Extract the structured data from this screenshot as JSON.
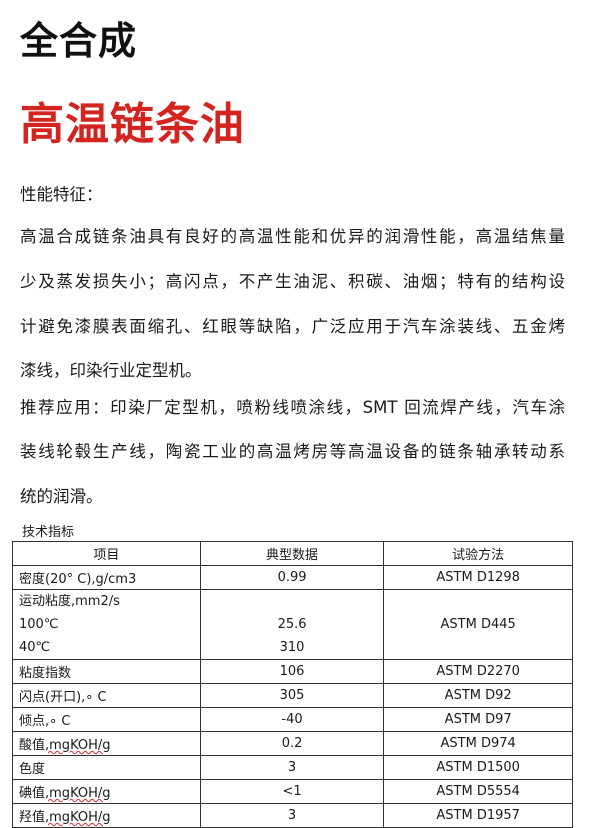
{
  "title": "全合成",
  "subtitle": "高温链条油",
  "features_heading": "性能特征：",
  "features_lines": [
    "高温合成链条油具有良好的高温性能和优异的润滑性能，高温结焦量",
    "少及蒸发损失小；高闪点，不产生油泥、积碳、油烟；特有的结构设",
    "计避免漆膜表面缩孔、红眼等缺陷，广泛应用于汽车涂装线、五金烤",
    "漆线，印染行业定型机。"
  ],
  "applications_lines": [
    "推荐应用：印染厂定型机，喷粉线喷涂线，SMT 回流焊产线，汽车涂",
    "装线轮毂生产线，陶瓷工业的高温烤房等高温设备的链条轴承转动系",
    "统的润滑。"
  ],
  "table_title": "技术指标",
  "table": {
    "headers": [
      "项目",
      "典型数据",
      "试验方法"
    ],
    "rows": [
      {
        "item": "密度(20° C),g/cm3",
        "value": "0.99",
        "method": "ASTM D1298"
      },
      {
        "item": "运动粘度,mm2/s",
        "sub1": "100℃",
        "sub2": "40℃",
        "value1": "25.6",
        "value2": "310",
        "method": "ASTM D445"
      },
      {
        "item": "粘度指数",
        "value": "106",
        "method": "ASTM D2270"
      },
      {
        "item": "闪点(开口),∘ C",
        "value": "305",
        "method": "ASTM D92"
      },
      {
        "item": "倾点,∘ C",
        "value": "-40",
        "method": "ASTM D97"
      },
      {
        "item": "酸值",
        "unit": ",mgKOH/g",
        "value": "0.2",
        "method": "ASTM D974"
      },
      {
        "item": "色度",
        "value": "3",
        "method": "ASTM D1500"
      },
      {
        "item": "碘值",
        "unit": ",mgKOH/g",
        "value": "<1",
        "method": "ASTM D5554"
      },
      {
        "item": "羟值",
        "unit": ",mgKOH/g",
        "value": "3",
        "method": "ASTM D1957"
      }
    ]
  },
  "colors": {
    "title_red": "#d42420"
  }
}
